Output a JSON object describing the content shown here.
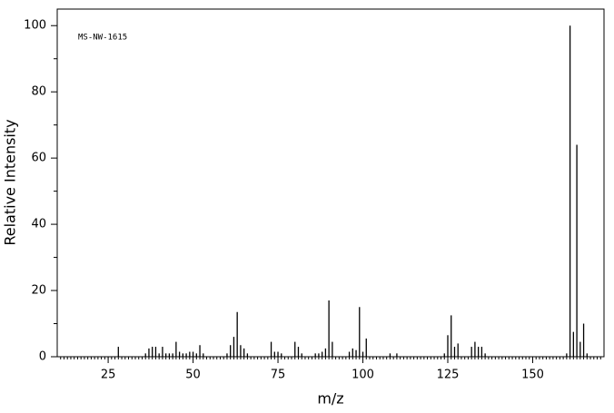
{
  "chart_data": {
    "type": "stem",
    "annotation": "MS-NW-1615",
    "xlabel": "m/z",
    "ylabel": "Relative Intensity",
    "color": "#000000",
    "x": [
      28,
      36,
      37,
      38,
      39,
      40,
      41,
      42,
      43,
      44,
      45,
      46,
      47,
      48,
      49,
      50,
      51,
      52,
      53,
      60,
      61,
      62,
      63,
      64,
      65,
      66,
      73,
      74,
      75,
      76,
      80,
      81,
      82,
      86,
      87,
      88,
      89,
      90,
      91,
      96,
      97,
      98,
      99,
      100,
      101,
      108,
      110,
      124,
      125,
      126,
      127,
      128,
      132,
      133,
      134,
      135,
      136,
      160,
      161,
      162,
      163,
      164,
      165,
      166
    ],
    "values": [
      3,
      1,
      2.5,
      3,
      3,
      1,
      3,
      1,
      1,
      1,
      4.5,
      1.5,
      1,
      1,
      1.5,
      1.5,
      1,
      3.5,
      1,
      1,
      3.5,
      6,
      13.5,
      3.5,
      2.5,
      1,
      4.5,
      1.5,
      1.5,
      1,
      4.5,
      3,
      1,
      1,
      1,
      1.5,
      2.5,
      17,
      4.5,
      1.5,
      2.5,
      2,
      15,
      1.5,
      5.5,
      1,
      1,
      1,
      6.5,
      12.5,
      3,
      4,
      3,
      4.5,
      3,
      3,
      1,
      1,
      100,
      7.5,
      64,
      4.5,
      10,
      1
    ],
    "xlim": [
      10,
      171
    ],
    "ylim": [
      0,
      105
    ],
    "xticks": [
      25,
      50,
      75,
      100,
      125,
      150
    ],
    "yticks": [
      0,
      20,
      40,
      60,
      80,
      100
    ]
  }
}
